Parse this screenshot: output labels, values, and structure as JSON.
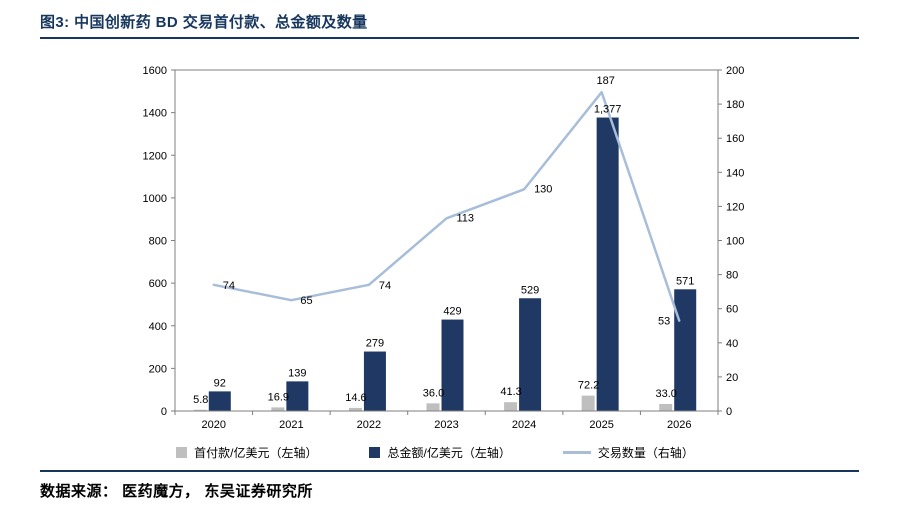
{
  "header": {
    "title": "图3:  中国创新药 BD 交易首付款、总金额及数量"
  },
  "footer": {
    "source": "数据来源： 医药魔方， 东吴证券研究所"
  },
  "colors": {
    "accent_navy": "#17365D",
    "upfront_bar": "#BFBFBF",
    "total_bar": "#1F3864",
    "deal_line": "#A8BDD8"
  },
  "chart_data": {
    "type": "bar",
    "subtype": "combo-bar-line",
    "title": "中国创新药 BD 交易首付款、总金额及数量",
    "categories": [
      "2020",
      "2021",
      "2022",
      "2023",
      "2024",
      "2025",
      "2026"
    ],
    "series": [
      {
        "name": "首付款/亿美元（左轴）",
        "type": "bar",
        "axis": "left",
        "color": "#BFBFBF",
        "values": [
          5.8,
          16.9,
          14.6,
          36.0,
          41.3,
          72.2,
          33.0
        ],
        "labels": [
          "5.8",
          "16.9",
          "14.6",
          "36.0",
          "41.3",
          "72.2",
          "33.0"
        ]
      },
      {
        "name": "总金额/亿美元（左轴）",
        "type": "bar",
        "axis": "left",
        "color": "#1F3864",
        "values": [
          92,
          139,
          279,
          429,
          529,
          1377,
          571
        ],
        "labels": [
          "92",
          "139",
          "279",
          "429",
          "529",
          "1,377",
          "571"
        ]
      },
      {
        "name": "交易数量（右轴）",
        "type": "line",
        "axis": "right",
        "color": "#A8BDD8",
        "values": [
          74,
          65,
          74,
          113,
          130,
          187,
          53
        ],
        "labels": [
          "74",
          "65",
          "74",
          "113",
          "130",
          "187",
          "53"
        ]
      }
    ],
    "left_axis": {
      "min": 0,
      "max": 1600,
      "step": 200,
      "ticks": [
        "0",
        "200",
        "400",
        "600",
        "800",
        "1000",
        "1200",
        "1400",
        "1600"
      ]
    },
    "right_axis": {
      "min": 0,
      "max": 200,
      "step": 20,
      "ticks": [
        "0",
        "20",
        "40",
        "60",
        "80",
        "100",
        "120",
        "140",
        "160",
        "180",
        "200"
      ]
    },
    "grid": false,
    "legend_position": "bottom"
  }
}
